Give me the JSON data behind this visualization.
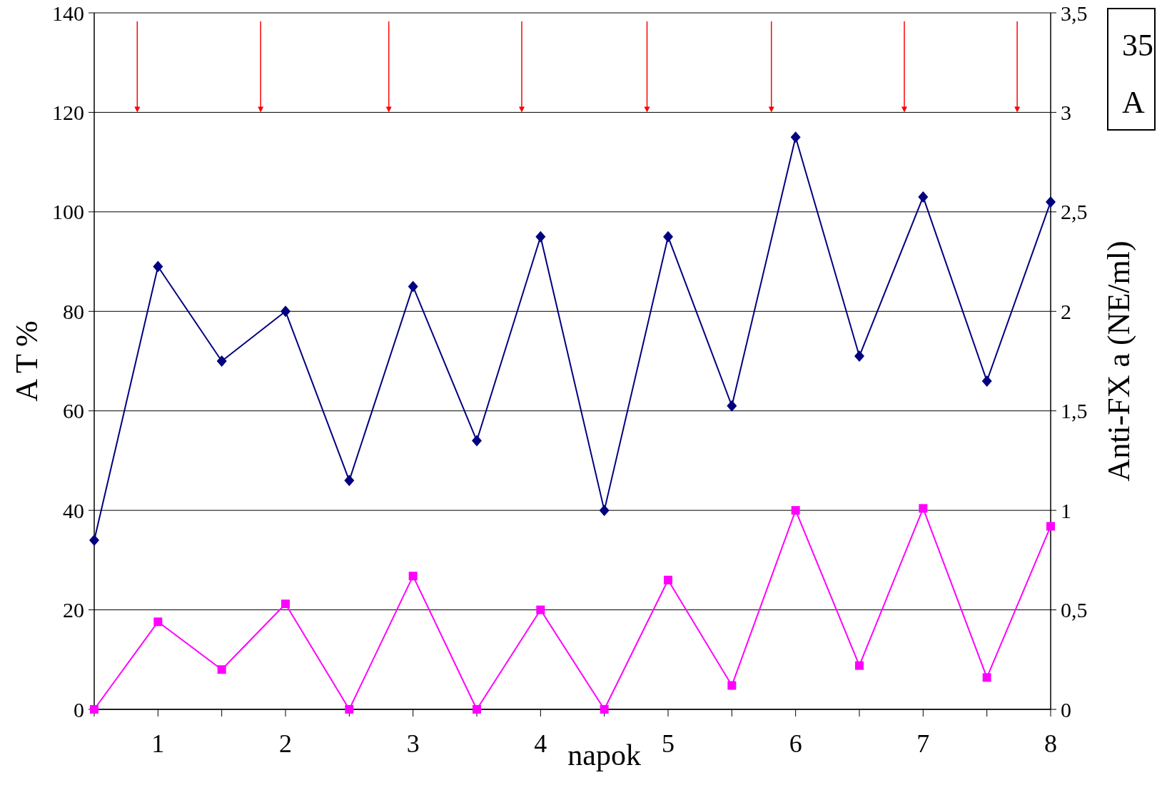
{
  "chart_data": {
    "type": "line",
    "xlabel": "napok",
    "ylabel": "A T %",
    "y2label": "Anti-FX a (NE/ml)",
    "x": [
      0.5,
      1,
      1.5,
      2,
      2.5,
      3,
      3.5,
      4,
      4.5,
      5,
      5.5,
      6,
      6.5,
      7,
      7.5,
      8
    ],
    "xlim": [
      0.5,
      8
    ],
    "xticks": [
      {
        "value": 0.5,
        "label": null
      },
      1,
      {
        "value": 1.5,
        "label": null
      },
      2,
      {
        "value": 2.5,
        "label": null
      },
      3,
      {
        "value": 3.5,
        "label": null
      },
      4,
      {
        "value": 4.5,
        "label": null
      },
      5,
      {
        "value": 5.5,
        "label": null
      },
      6,
      {
        "value": 6.5,
        "label": null
      },
      7,
      {
        "value": 7.5,
        "label": null
      },
      8
    ],
    "ylim": [
      0,
      140
    ],
    "yticks": [
      0,
      20,
      40,
      60,
      80,
      100,
      120,
      140
    ],
    "y2lim": [
      0,
      3.5
    ],
    "y2ticks": [
      0,
      {
        "value": 0.5,
        "label": "0,5"
      },
      1,
      {
        "value": 1.5,
        "label": "1,5"
      },
      2,
      {
        "value": 2.5,
        "label": "2,5"
      },
      3,
      {
        "value": 3.5,
        "label": "3,5"
      }
    ],
    "series": [
      {
        "color": "#000080",
        "marker": "diamond",
        "values": [
          34,
          89,
          70,
          80,
          46,
          85,
          54,
          95,
          40,
          95,
          61,
          115,
          71,
          103,
          66,
          102
        ]
      },
      {
        "color": "#ff00ff",
        "marker": "square",
        "axis": "y2",
        "values": [
          0,
          0.44,
          0.2,
          0.53,
          0,
          0.67,
          0,
          0.5,
          0,
          0.65,
          0.12,
          1.0,
          0.22,
          1.01,
          0.16,
          0.92
        ]
      }
    ],
    "grid": "y",
    "annotations": [
      "35",
      "A"
    ]
  }
}
